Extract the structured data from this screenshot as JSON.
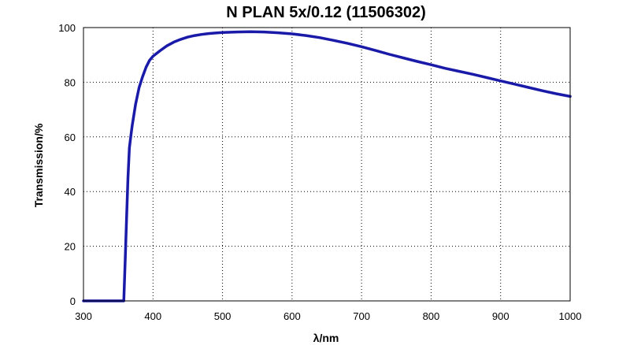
{
  "chart_data": {
    "type": "line",
    "title": "N PLAN 5x/0.12 (11506302)",
    "xlabel": "λ/nm",
    "ylabel": "Transmission/%",
    "xlim": [
      300,
      1000
    ],
    "ylim": [
      0,
      100
    ],
    "xticks": [
      "300",
      "400",
      "500",
      "600",
      "700",
      "800",
      "900",
      "1000"
    ],
    "yticks": [
      "0",
      "20",
      "40",
      "60",
      "80",
      "100"
    ],
    "grid": true,
    "colors": {
      "series": "#1a1aa8",
      "grid": "#000000",
      "frame": "#000000"
    },
    "series": [
      {
        "x": [
          300,
          355,
          358,
          360,
          362,
          364,
          366,
          368,
          370,
          375,
          380,
          385,
          390,
          395,
          400,
          410,
          420,
          430,
          440,
          450,
          460,
          470,
          480,
          490,
          500,
          520,
          540,
          560,
          580,
          600,
          620,
          640,
          660,
          680,
          700,
          720,
          740,
          760,
          780,
          800,
          820,
          840,
          860,
          880,
          900,
          920,
          940,
          960,
          980,
          1000
        ],
        "y": [
          0,
          0,
          0,
          15,
          30,
          45,
          56,
          60,
          64,
          72,
          78,
          82,
          85.5,
          88,
          89.5,
          91.5,
          93.3,
          94.7,
          95.7,
          96.5,
          97.1,
          97.5,
          97.8,
          98.0,
          98.2,
          98.4,
          98.5,
          98.4,
          98.1,
          97.7,
          97.1,
          96.3,
          95.3,
          94.2,
          93.0,
          91.6,
          90.2,
          88.9,
          87.6,
          86.4,
          85.1,
          84.0,
          82.9,
          81.7,
          80.5,
          79.3,
          78.1,
          76.9,
          75.8,
          74.8
        ]
      }
    ]
  }
}
